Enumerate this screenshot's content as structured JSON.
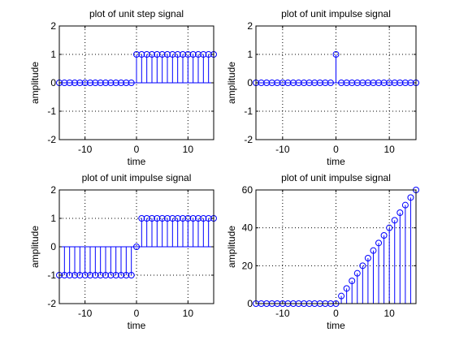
{
  "chart_data": [
    {
      "type": "stem",
      "title": "plot of unit step signal",
      "xlabel": "time",
      "ylabel": "amplitude",
      "xlim": [
        -15,
        15
      ],
      "ylim": [
        -2,
        2
      ],
      "xticks": [
        -10,
        0,
        10
      ],
      "yticks": [
        -2,
        -1,
        0,
        1,
        2
      ],
      "grid": true,
      "color": "#0000ff",
      "x": [
        -15,
        -14,
        -13,
        -12,
        -11,
        -10,
        -9,
        -8,
        -7,
        -6,
        -5,
        -4,
        -3,
        -2,
        -1,
        0,
        1,
        2,
        3,
        4,
        5,
        6,
        7,
        8,
        9,
        10,
        11,
        12,
        13,
        14,
        15
      ],
      "y": [
        0,
        0,
        0,
        0,
        0,
        0,
        0,
        0,
        0,
        0,
        0,
        0,
        0,
        0,
        0,
        1,
        1,
        1,
        1,
        1,
        1,
        1,
        1,
        1,
        1,
        1,
        1,
        1,
        1,
        1,
        1
      ]
    },
    {
      "type": "stem",
      "title": "plot of unit impulse signal",
      "xlabel": "time",
      "ylabel": "amplitude",
      "xlim": [
        -15,
        15
      ],
      "ylim": [
        -2,
        2
      ],
      "xticks": [
        -10,
        0,
        10
      ],
      "yticks": [
        -2,
        -1,
        0,
        1,
        2
      ],
      "grid": true,
      "color": "#0000ff",
      "x": [
        -15,
        -14,
        -13,
        -12,
        -11,
        -10,
        -9,
        -8,
        -7,
        -6,
        -5,
        -4,
        -3,
        -2,
        -1,
        0,
        1,
        2,
        3,
        4,
        5,
        6,
        7,
        8,
        9,
        10,
        11,
        12,
        13,
        14,
        15
      ],
      "y": [
        0,
        0,
        0,
        0,
        0,
        0,
        0,
        0,
        0,
        0,
        0,
        0,
        0,
        0,
        0,
        1,
        0,
        0,
        0,
        0,
        0,
        0,
        0,
        0,
        0,
        0,
        0,
        0,
        0,
        0,
        0
      ]
    },
    {
      "type": "stem",
      "title": "plot of unit impulse signal",
      "xlabel": "time",
      "ylabel": "amplitude",
      "xlim": [
        -15,
        15
      ],
      "ylim": [
        -2,
        2
      ],
      "xticks": [
        -10,
        0,
        10
      ],
      "yticks": [
        -2,
        -1,
        0,
        1,
        2
      ],
      "grid": true,
      "color": "#0000ff",
      "x": [
        -15,
        -14,
        -13,
        -12,
        -11,
        -10,
        -9,
        -8,
        -7,
        -6,
        -5,
        -4,
        -3,
        -2,
        -1,
        0,
        1,
        2,
        3,
        4,
        5,
        6,
        7,
        8,
        9,
        10,
        11,
        12,
        13,
        14,
        15
      ],
      "y": [
        -1,
        -1,
        -1,
        -1,
        -1,
        -1,
        -1,
        -1,
        -1,
        -1,
        -1,
        -1,
        -1,
        -1,
        -1,
        0,
        1,
        1,
        1,
        1,
        1,
        1,
        1,
        1,
        1,
        1,
        1,
        1,
        1,
        1,
        1
      ]
    },
    {
      "type": "stem",
      "title": "plot of unit impulse signal",
      "xlabel": "time",
      "ylabel": "amplitude",
      "xlim": [
        -15,
        15
      ],
      "ylim": [
        0,
        60
      ],
      "xticks": [
        -10,
        0,
        10
      ],
      "yticks": [
        0,
        20,
        40,
        60
      ],
      "grid": true,
      "color": "#0000ff",
      "x": [
        -15,
        -14,
        -13,
        -12,
        -11,
        -10,
        -9,
        -8,
        -7,
        -6,
        -5,
        -4,
        -3,
        -2,
        -1,
        0,
        1,
        2,
        3,
        4,
        5,
        6,
        7,
        8,
        9,
        10,
        11,
        12,
        13,
        14,
        15
      ],
      "y": [
        0,
        0,
        0,
        0,
        0,
        0,
        0,
        0,
        0,
        0,
        0,
        0,
        0,
        0,
        0,
        0,
        4,
        8,
        12,
        16,
        20,
        24,
        28,
        32,
        36,
        40,
        44,
        48,
        52,
        56,
        60
      ]
    }
  ]
}
